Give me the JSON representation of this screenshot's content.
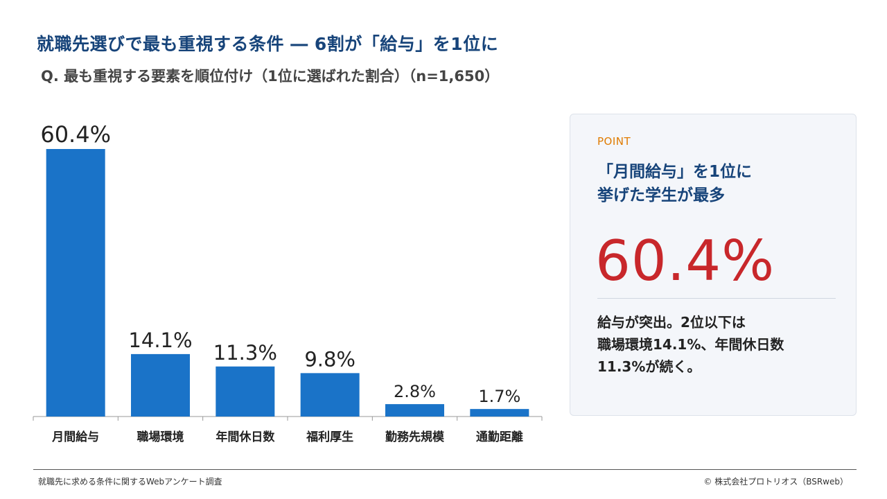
{
  "header": {
    "title": "就職先選びで最も重視する条件 ― 6割が「給与」を1位に",
    "subtitle": "Q. 最も重視する要素を順位付け（1位に選ばれた割合）（n=1,650）"
  },
  "chart_data": {
    "type": "bar",
    "categories": [
      "月間給与",
      "職場環境",
      "年間休日数",
      "福利厚生",
      "勤務先規模",
      "通勤距離"
    ],
    "values": [
      60.4,
      14.1,
      11.3,
      9.8,
      2.8,
      1.7
    ],
    "value_labels": [
      "60.4%",
      "14.1%",
      "11.3%",
      "9.8%",
      "2.8%",
      "1.7%"
    ],
    "ylim": [
      0,
      60.4
    ],
    "bar_color": "#1a73c8",
    "grid": false,
    "title": "",
    "xlabel": "",
    "ylabel": ""
  },
  "point_panel": {
    "label": "POINT",
    "heading_line1": "「月間給与」を1位に",
    "heading_line2": "挙げた学生が最多",
    "value": "60.4%",
    "body_line1": "給与が突出。2位以下は",
    "body_line2": "職場環境14.1%、年間休日数",
    "body_line3": "11.3%が続く。"
  },
  "footer": {
    "source": "就職先に求める条件に関するWebアンケート調査",
    "copyright": "©  株式会社プロトリオス（BSRweb）"
  },
  "colors": {
    "title": "#17447a",
    "accent": "#c8272b",
    "point_label": "#e07b00",
    "bar": "#1a73c8"
  }
}
